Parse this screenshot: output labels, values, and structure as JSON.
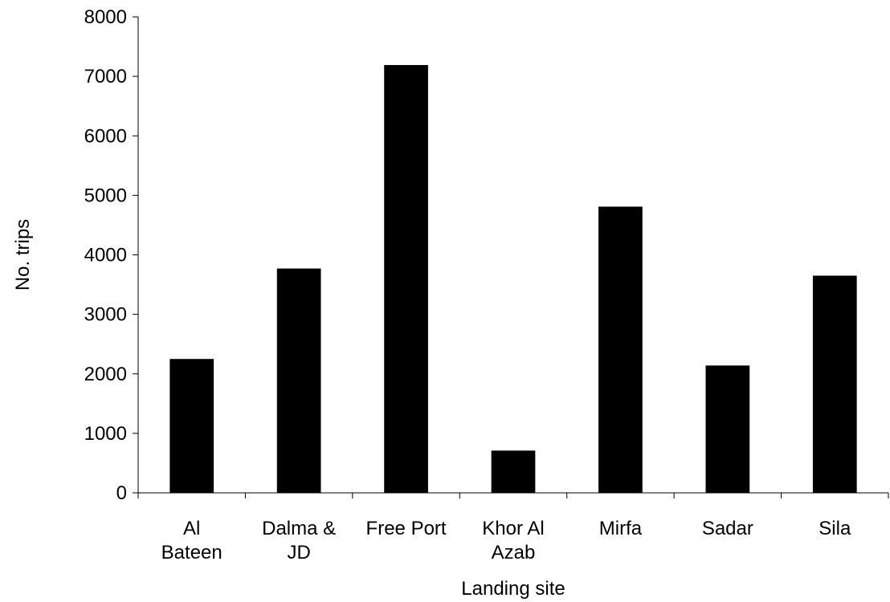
{
  "chart_data": {
    "type": "bar",
    "title": "",
    "xlabel": "Landing site",
    "ylabel": "No. trips",
    "ylim": [
      0,
      8000
    ],
    "yticks": [
      "0",
      "1000",
      "2000",
      "3000",
      "4000",
      "5000",
      "6000",
      "7000",
      "8000"
    ],
    "categories": [
      [
        "Al",
        "Bateen"
      ],
      [
        "Dalma &",
        "JD"
      ],
      [
        "Free Port"
      ],
      [
        "Khor Al",
        "Azab"
      ],
      [
        "Mirfa"
      ],
      [
        "Sadar"
      ],
      [
        "Sila"
      ]
    ],
    "values": [
      2250,
      3770,
      7190,
      710,
      4810,
      2140,
      3650
    ],
    "bar_color": "#000000",
    "grid": false,
    "legend": "none"
  }
}
